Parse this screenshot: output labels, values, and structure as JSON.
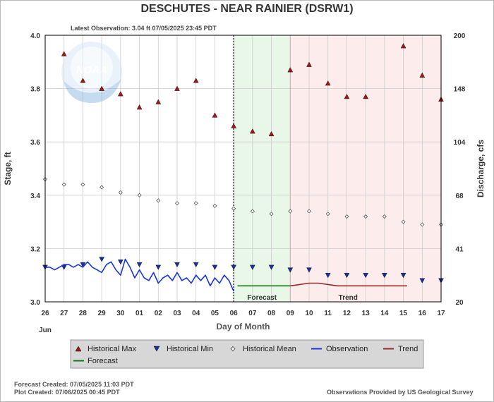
{
  "chart_data": {
    "type": "line",
    "title": "DESCHUTES - NEAR RAINIER  (DSRW1)",
    "subtitle": "Latest Observation: 3.04 ft 07/05/2025 23:45 PDT",
    "xlabel": "Day of Month",
    "ylabel": "Stage, ft",
    "ylabel_right": "Discharge, cfs",
    "x_month_label": "Jun",
    "x_ticks": [
      "26",
      "27",
      "28",
      "29",
      "30",
      "01",
      "02",
      "03",
      "04",
      "05",
      "06",
      "07",
      "08",
      "09",
      "10",
      "11",
      "12",
      "13",
      "14",
      "15",
      "16",
      "17"
    ],
    "ylim": [
      3.0,
      4.0
    ],
    "y_ticks": [
      "3.0",
      "3.2",
      "3.4",
      "3.6",
      "3.8",
      "4.0"
    ],
    "right_ticks": [
      "20",
      "41",
      "68",
      "104",
      "148",
      "200"
    ],
    "grid": true,
    "region_labels": {
      "forecast": "Forecast",
      "trend": "Trend"
    },
    "regions": {
      "observation_end_day": 10,
      "forecast_end_day": 13
    },
    "legend_position": "bottom",
    "colors": {
      "historical_max": "#a01818",
      "historical_min": "#1a2fa0",
      "observation": "#1a35e0",
      "forecast": "#117711",
      "trend": "#9a2a2a",
      "forecast_bg": "#e8f7e8",
      "trend_bg": "#fcecec"
    },
    "series": [
      {
        "name": "Historical Max",
        "marker": "triangle-up",
        "days": [
          0,
          1,
          2,
          3,
          4,
          5,
          6,
          7,
          8,
          9,
          10,
          11,
          12,
          13,
          14,
          15,
          16,
          17,
          18,
          19,
          20,
          21
        ],
        "values": [
          null,
          3.93,
          3.83,
          3.8,
          3.78,
          3.73,
          3.75,
          3.8,
          3.83,
          3.7,
          3.66,
          3.64,
          3.63,
          3.87,
          3.89,
          3.82,
          3.77,
          3.77,
          null,
          3.96,
          3.85,
          3.76
        ]
      },
      {
        "name": "Historical Min",
        "marker": "triangle-down",
        "days": [
          0,
          1,
          2,
          3,
          4,
          5,
          6,
          7,
          8,
          9,
          10,
          11,
          12,
          13,
          14,
          15,
          16,
          17,
          18,
          19,
          20,
          21
        ],
        "values": [
          3.13,
          3.13,
          3.14,
          3.16,
          3.15,
          3.14,
          3.13,
          3.14,
          3.14,
          3.13,
          3.13,
          3.13,
          3.13,
          3.12,
          3.12,
          3.1,
          3.1,
          3.1,
          3.1,
          3.1,
          3.08,
          3.08
        ]
      },
      {
        "name": "Historical Mean",
        "marker": "diamond",
        "days": [
          0,
          1,
          2,
          3,
          4,
          5,
          6,
          7,
          8,
          9,
          10,
          11,
          12,
          13,
          14,
          15,
          16,
          17,
          18,
          19,
          20,
          21
        ],
        "values": [
          3.46,
          3.44,
          3.44,
          3.43,
          3.41,
          3.4,
          3.38,
          3.37,
          3.37,
          3.36,
          3.35,
          3.34,
          3.33,
          3.34,
          3.34,
          3.33,
          3.32,
          3.32,
          3.32,
          3.3,
          3.29,
          3.29
        ]
      },
      {
        "name": "Observation",
        "marker": "line",
        "days": [
          0,
          0.25,
          0.5,
          0.75,
          1.0,
          1.25,
          1.5,
          1.75,
          2.0,
          2.25,
          2.5,
          2.75,
          3.0,
          3.25,
          3.5,
          3.75,
          4.0,
          4.25,
          4.5,
          4.75,
          5.0,
          5.25,
          5.5,
          5.75,
          6.0,
          6.25,
          6.5,
          6.75,
          7.0,
          7.25,
          7.5,
          7.75,
          8.0,
          8.25,
          8.5,
          8.75,
          9.0,
          9.25,
          9.5,
          9.75,
          10.0
        ],
        "values": [
          3.13,
          3.13,
          3.12,
          3.13,
          3.14,
          3.14,
          3.13,
          3.14,
          3.13,
          3.15,
          3.13,
          3.12,
          3.11,
          3.14,
          3.15,
          3.12,
          3.1,
          3.16,
          3.13,
          3.09,
          3.12,
          3.09,
          3.08,
          3.11,
          3.07,
          3.09,
          3.1,
          3.08,
          3.11,
          3.08,
          3.09,
          3.07,
          3.1,
          3.08,
          3.1,
          3.06,
          3.09,
          3.07,
          3.1,
          3.08,
          3.04
        ]
      },
      {
        "name": "Forecast",
        "marker": "line",
        "days": [
          10.2,
          10.5,
          11.0,
          11.5,
          12.0,
          12.5,
          13.0
        ],
        "values": [
          3.06,
          3.06,
          3.06,
          3.06,
          3.06,
          3.06,
          3.06
        ]
      },
      {
        "name": "Trend",
        "marker": "line",
        "days": [
          13.0,
          13.5,
          14.0,
          14.5,
          15.0,
          15.5,
          16.0,
          17.0,
          18.0,
          19.0,
          19.2
        ],
        "values": [
          3.06,
          3.065,
          3.07,
          3.07,
          3.065,
          3.06,
          3.06,
          3.06,
          3.06,
          3.06,
          3.06
        ]
      }
    ]
  },
  "footer": {
    "forecast_created": "Forecast Created: 07/05/2025 11:03 PDT",
    "plot_created": "Plot Created: 07/06/2025 00:45 PDT",
    "provider": "Observations Provided by US Geological Survey"
  },
  "logo_text": "NOAA"
}
